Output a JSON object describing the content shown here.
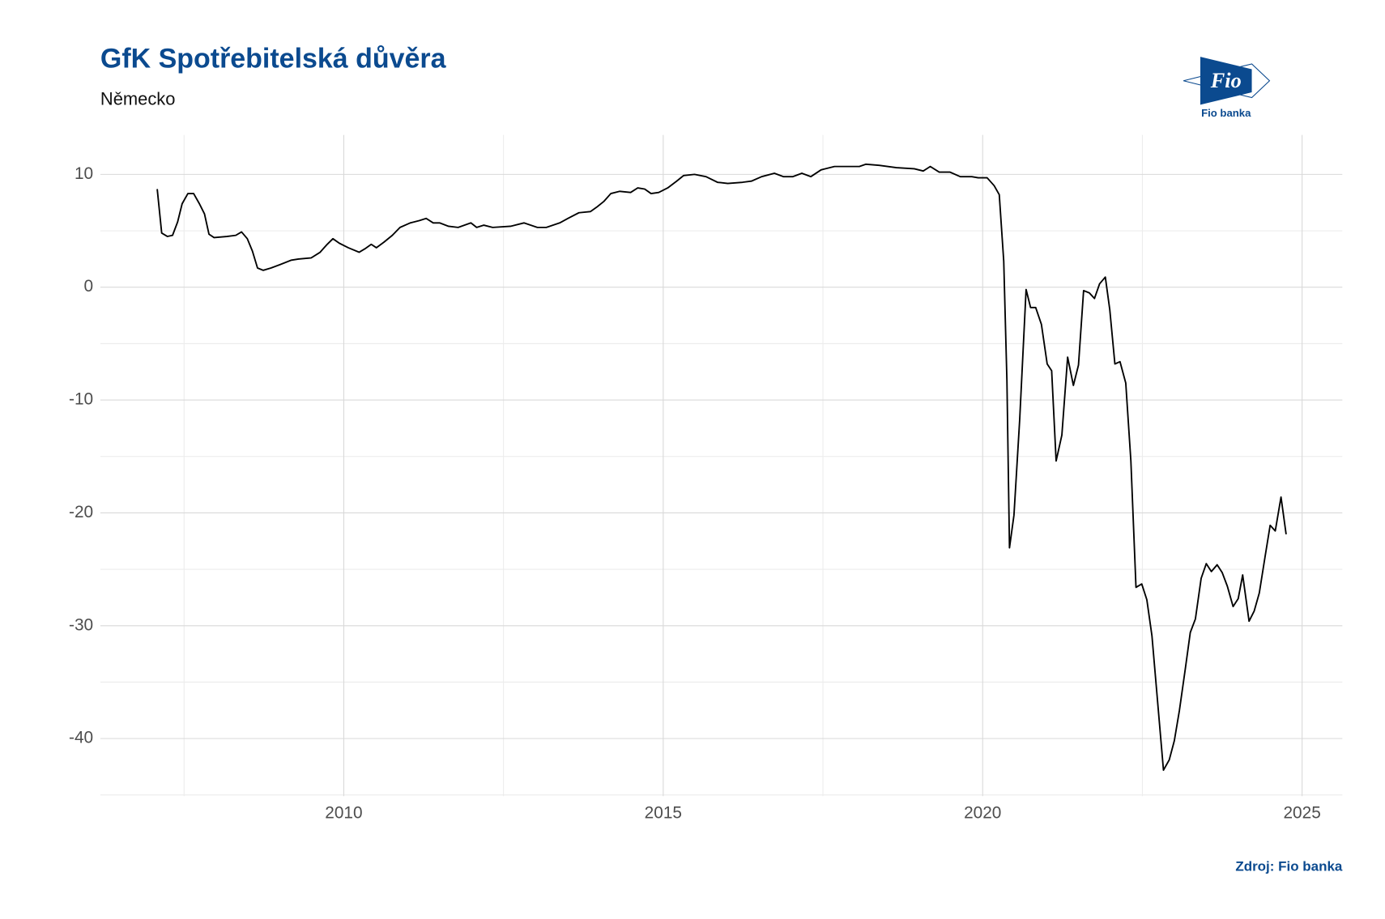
{
  "chart_data": {
    "type": "line",
    "title": "GfK Spotřebitelská důvěra",
    "subtitle": "Německo",
    "source": "Zdroj: Fio banka",
    "color": "#000000",
    "grid": true,
    "xlim": [
      2006.19,
      2025.63
    ],
    "ylim": [
      -45.1,
      13.5
    ],
    "xticks": [
      2010,
      2015,
      2020,
      2025
    ],
    "yticks": [
      -40,
      -30,
      -20,
      -10,
      0,
      10
    ],
    "x": [
      2007.08,
      2007.15,
      2007.24,
      2007.32,
      2007.4,
      2007.47,
      2007.56,
      2007.65,
      2007.74,
      2007.82,
      2007.89,
      2007.97,
      2008.17,
      2008.31,
      2008.4,
      2008.49,
      2008.57,
      2008.65,
      2008.74,
      2008.86,
      2009.0,
      2009.18,
      2009.29,
      2009.49,
      2009.63,
      2009.74,
      2009.83,
      2009.93,
      2010.07,
      2010.24,
      2010.33,
      2010.43,
      2010.51,
      2010.63,
      2010.76,
      2010.88,
      2011.04,
      2011.18,
      2011.29,
      2011.4,
      2011.5,
      2011.64,
      2011.79,
      2011.99,
      2012.08,
      2012.19,
      2012.33,
      2012.61,
      2012.82,
      2013.03,
      2013.17,
      2013.38,
      2013.51,
      2013.68,
      2013.86,
      2013.96,
      2014.07,
      2014.18,
      2014.32,
      2014.49,
      2014.6,
      2014.71,
      2014.81,
      2014.93,
      2015.07,
      2015.21,
      2015.32,
      2015.49,
      2015.67,
      2015.85,
      2016.01,
      2016.24,
      2016.38,
      2016.54,
      2016.74,
      2016.88,
      2017.03,
      2017.17,
      2017.31,
      2017.47,
      2017.68,
      2017.89,
      2018.07,
      2018.17,
      2018.38,
      2018.65,
      2018.93,
      2019.07,
      2019.18,
      2019.32,
      2019.49,
      2019.65,
      2019.83,
      2019.93,
      2020.07,
      2020.18,
      2020.26,
      2020.33,
      2020.38,
      2020.42,
      2020.49,
      2020.58,
      2020.68,
      2020.75,
      2020.83,
      2020.92,
      2021.01,
      2021.08,
      2021.15,
      2021.24,
      2021.33,
      2021.42,
      2021.5,
      2021.58,
      2021.67,
      2021.75,
      2021.83,
      2021.92,
      2021.99,
      2022.07,
      2022.15,
      2022.24,
      2022.32,
      2022.4,
      2022.49,
      2022.57,
      2022.65,
      2022.75,
      2022.83,
      2022.92,
      2023.0,
      2023.08,
      2023.17,
      2023.25,
      2023.33,
      2023.42,
      2023.5,
      2023.58,
      2023.67,
      2023.75,
      2023.83,
      2023.92,
      2024.0,
      2024.07,
      2024.17,
      2024.25,
      2024.33,
      2024.42,
      2024.5,
      2024.58,
      2024.67,
      2024.75
    ],
    "values": [
      8.7,
      4.8,
      4.5,
      4.6,
      5.8,
      7.4,
      8.3,
      8.3,
      7.4,
      6.5,
      4.7,
      4.4,
      4.5,
      4.6,
      4.9,
      4.3,
      3.2,
      1.7,
      1.5,
      1.7,
      2.0,
      2.4,
      2.5,
      2.6,
      3.1,
      3.8,
      4.3,
      3.9,
      3.5,
      3.1,
      3.4,
      3.8,
      3.5,
      4.0,
      4.6,
      5.3,
      5.7,
      5.9,
      6.1,
      5.7,
      5.7,
      5.4,
      5.3,
      5.7,
      5.3,
      5.5,
      5.3,
      5.4,
      5.7,
      5.3,
      5.3,
      5.7,
      6.1,
      6.6,
      6.7,
      7.1,
      7.6,
      8.3,
      8.5,
      8.4,
      8.8,
      8.7,
      8.3,
      8.4,
      8.8,
      9.4,
      9.9,
      10.0,
      9.8,
      9.3,
      9.2,
      9.3,
      9.4,
      9.8,
      10.1,
      9.8,
      9.8,
      10.1,
      9.8,
      10.4,
      10.7,
      10.7,
      10.7,
      10.9,
      10.8,
      10.6,
      10.5,
      10.3,
      10.7,
      10.2,
      10.2,
      9.8,
      9.8,
      9.7,
      9.7,
      9.0,
      8.2,
      2.3,
      -8.3,
      -23.1,
      -20.2,
      -11.7,
      -0.2,
      -1.8,
      -1.8,
      -3.3,
      -6.8,
      -7.4,
      -15.4,
      -13.1,
      -6.2,
      -8.7,
      -6.9,
      -0.3,
      -0.5,
      -1.0,
      0.3,
      0.9,
      -2.0,
      -6.8,
      -6.6,
      -8.5,
      -15.4,
      -26.6,
      -26.3,
      -27.7,
      -30.9,
      -37.5,
      -42.8,
      -41.9,
      -40.2,
      -37.5,
      -33.9,
      -30.6,
      -29.4,
      -25.8,
      -24.5,
      -25.2,
      -24.6,
      -25.3,
      -26.5,
      -28.3,
      -27.6,
      -25.5,
      -29.6,
      -28.7,
      -27.1,
      -23.9,
      -21.1,
      -21.6,
      -18.6,
      -21.9
    ]
  },
  "logo": {
    "mark": "Fio",
    "name": "Fio banka"
  }
}
